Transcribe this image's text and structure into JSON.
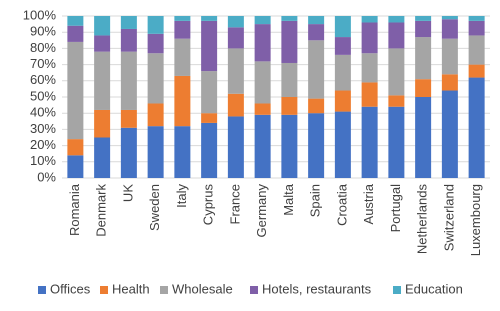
{
  "chart_data": {
    "type": "stacked_bar",
    "categories": [
      "Romania",
      "Denmark",
      "UK",
      "Sweden",
      "Italy",
      "Cyprus",
      "France",
      "Germany",
      "Malta",
      "Spain",
      "Croatia",
      "Austria",
      "Portugal",
      "Netherlands",
      "Switzerland",
      "Luxembourg"
    ],
    "series": [
      {
        "name": "Offices",
        "color": "#4472c4",
        "values": [
          14,
          25,
          31,
          32,
          32,
          34,
          38,
          39,
          39,
          40,
          41,
          44,
          44,
          50,
          54,
          62
        ]
      },
      {
        "name": "Health",
        "color": "#ed7d31",
        "values": [
          10,
          17,
          11,
          14,
          31,
          6,
          14,
          7,
          11,
          9,
          13,
          15,
          7,
          11,
          10,
          8
        ]
      },
      {
        "name": "Wholesale",
        "color": "#a5a5a5",
        "values": [
          60,
          36,
          36,
          31,
          23,
          26,
          28,
          26,
          21,
          36,
          22,
          18,
          29,
          26,
          22,
          18
        ]
      },
      {
        "name": "Hotels, restaurants",
        "color": "#7f5fa8",
        "values": [
          10,
          10,
          14,
          12,
          11,
          31,
          13,
          23,
          26,
          10,
          11,
          19,
          16,
          10,
          12,
          9
        ]
      },
      {
        "name": "Education",
        "color": "#4bacc6",
        "values": [
          6,
          12,
          8,
          11,
          3,
          3,
          7,
          5,
          3,
          5,
          13,
          4,
          4,
          3,
          2,
          3
        ]
      }
    ],
    "ylim": [
      0,
      100
    ],
    "yticks": [
      {
        "value": 0,
        "label": "0%"
      },
      {
        "value": 10,
        "label": "10%"
      },
      {
        "value": 20,
        "label": "20%"
      },
      {
        "value": 30,
        "label": "30%"
      },
      {
        "value": 40,
        "label": "40%"
      },
      {
        "value": 50,
        "label": "50%"
      },
      {
        "value": 60,
        "label": "60%"
      },
      {
        "value": 70,
        "label": "70%"
      },
      {
        "value": 80,
        "label": "80%"
      },
      {
        "value": 90,
        "label": "90%"
      },
      {
        "value": 100,
        "label": "100%"
      }
    ],
    "grid": true,
    "legend": "bottom"
  }
}
